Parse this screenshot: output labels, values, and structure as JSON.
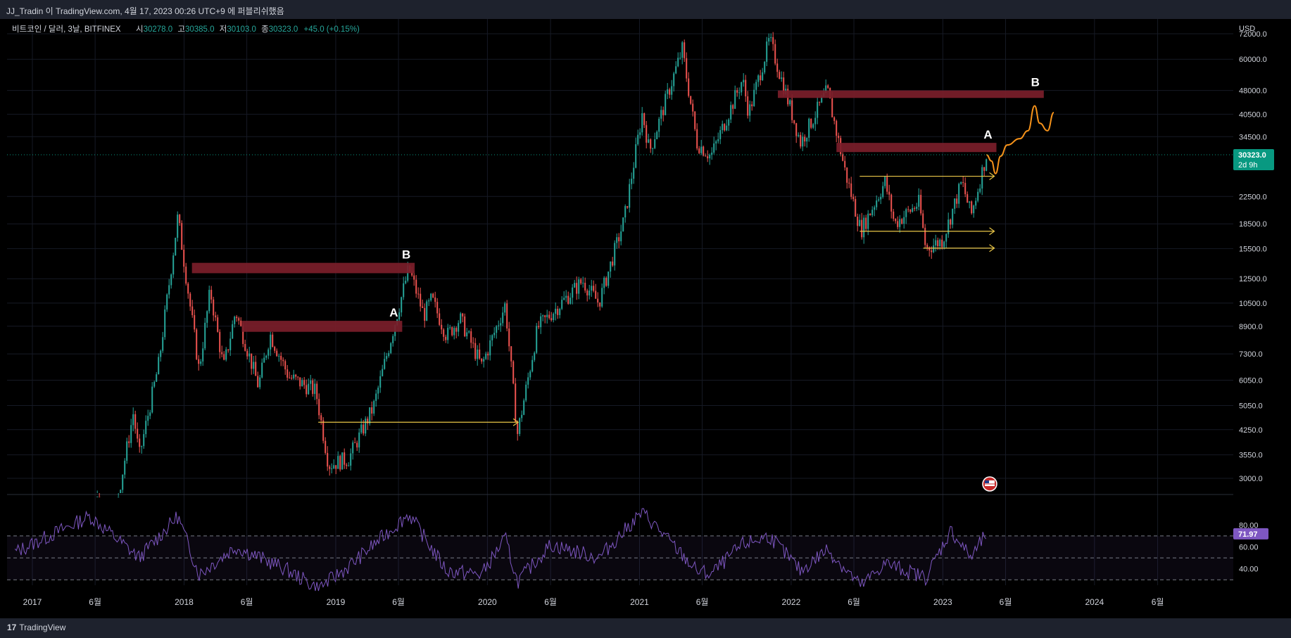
{
  "header": {
    "title": "JJ_Tradin 이 TradingView.com, 4월 17, 2023 00:26 UTC+9 에 퍼블리쉬했음"
  },
  "footer": {
    "brand_mark": "17",
    "brand_name": "TradingView"
  },
  "legend": {
    "symbol": "비트코인 / 달러, 3날, BITFINEX",
    "open_label": "시",
    "open": "30278.0",
    "high_label": "고",
    "high": "30385.0",
    "low_label": "저",
    "low": "30103.0",
    "close_label": "종",
    "close": "30323.0",
    "change": "+45.0 (+0.15%)"
  },
  "price_axis": {
    "currency": "USD",
    "ticks": [
      "72000.0",
      "60000.0",
      "48000.0",
      "40500.0",
      "34500.0",
      "22500.0",
      "18500.0",
      "15500.0",
      "12500.0",
      "10500.0",
      "8900.0",
      "7300.0",
      "6050.0",
      "5050.0",
      "4250.0",
      "3550.0",
      "3000.0"
    ],
    "last_price": "30323.0",
    "countdown": "2d 9h"
  },
  "rsi_axis": {
    "ticks": [
      "80.00",
      "60.00",
      "40.00"
    ],
    "value": "71.97"
  },
  "time_axis": [
    "2017",
    "6월",
    "2018",
    "6월",
    "2019",
    "6월",
    "2020",
    "6월",
    "2021",
    "6월",
    "2022",
    "6월",
    "2023",
    "6월",
    "2024",
    "6월"
  ],
  "annotations": {
    "labels": [
      "B",
      "A",
      "B",
      "A"
    ]
  },
  "colors": {
    "background": "#000000",
    "up": "#26a69a",
    "down": "#ef5350",
    "zone": "#7b1e2a",
    "arrow": "#e8c547",
    "projection": "#f7931a",
    "rsi": "#7e57c2",
    "last_price_badge": "#089981"
  },
  "chart_data": {
    "type": "candlestick",
    "title": "비트코인 / 달러, 3날, BITFINEX",
    "ylabel": "USD",
    "yscale": "log",
    "ylim": [
      2700,
      80000
    ],
    "xlim": [
      "2016-11-01",
      "2024-11-30"
    ],
    "path_points": [
      [
        "2016-11-20",
        700
      ],
      [
        "2017-02-20",
        1100
      ],
      [
        "2017-04-20",
        1400
      ],
      [
        "2017-05-30",
        2600
      ],
      [
        "2017-07-15",
        2200
      ],
      [
        "2017-09-01",
        4800
      ],
      [
        "2017-09-15",
        3500
      ],
      [
        "2017-11-01",
        6800
      ],
      [
        "2017-12-17",
        19500
      ],
      [
        "2018-02-06",
        6500
      ],
      [
        "2018-03-05",
        11500
      ],
      [
        "2018-04-06",
        6600
      ],
      [
        "2018-05-05",
        9900
      ],
      [
        "2018-06-29",
        5800
      ],
      [
        "2018-07-27",
        8400
      ],
      [
        "2018-09-10",
        6200
      ],
      [
        "2018-11-14",
        5600
      ],
      [
        "2018-12-15",
        3300
      ],
      [
        "2019-02-01",
        3450
      ],
      [
        "2019-04-02",
        5000
      ],
      [
        "2019-06-26",
        13500
      ],
      [
        "2019-08-01",
        9600
      ],
      [
        "2019-08-20",
        10800
      ],
      [
        "2019-09-25",
        8300
      ],
      [
        "2019-10-27",
        9400
      ],
      [
        "2019-12-18",
        6700
      ],
      [
        "2020-02-13",
        10400
      ],
      [
        "2020-03-13",
        4100
      ],
      [
        "2020-05-01",
        8800
      ],
      [
        "2020-06-01",
        9700
      ],
      [
        "2020-08-17",
        12300
      ],
      [
        "2020-09-25",
        10500
      ],
      [
        "2020-11-25",
        19000
      ],
      [
        "2021-01-08",
        41000
      ],
      [
        "2021-01-25",
        31000
      ],
      [
        "2021-04-14",
        64500
      ],
      [
        "2021-05-19",
        33000
      ],
      [
        "2021-06-22",
        30000
      ],
      [
        "2021-09-06",
        52000
      ],
      [
        "2021-09-21",
        40800
      ],
      [
        "2021-11-10",
        69000
      ],
      [
        "2022-01-24",
        33000
      ],
      [
        "2022-03-29",
        48000
      ],
      [
        "2022-05-12",
        26500
      ],
      [
        "2022-06-18",
        17600
      ],
      [
        "2022-08-15",
        25000
      ],
      [
        "2022-09-07",
        18500
      ],
      [
        "2022-11-05",
        21500
      ],
      [
        "2022-11-21",
        15500
      ],
      [
        "2023-01-01",
        16500
      ],
      [
        "2023-02-16",
        25000
      ],
      [
        "2023-03-10",
        19600
      ],
      [
        "2023-04-16",
        30323
      ]
    ],
    "resistance_zones": [
      {
        "label": "B",
        "x_start": "2018-01-20",
        "x_end": "2019-07-10",
        "y_low": 13000,
        "y_high": 14000
      },
      {
        "label": "A",
        "x_start": "2018-05-20",
        "x_end": "2019-06-10",
        "y_low": 8550,
        "y_high": 9250
      },
      {
        "label": "B",
        "x_start": "2021-11-30",
        "x_end": "2023-09-01",
        "y_low": 45500,
        "y_high": 48000
      },
      {
        "label": "A",
        "x_start": "2022-04-20",
        "x_end": "2023-05-10",
        "y_low": 30900,
        "y_high": 33000
      }
    ],
    "arrows": [
      {
        "x_start": "2018-11-20",
        "x_end": "2020-03-15",
        "y": 4480
      },
      {
        "x_start": "2022-06-15",
        "x_end": "2023-05-05",
        "y": 26000
      },
      {
        "x_start": "2022-06-15",
        "x_end": "2023-05-05",
        "y": 17550
      },
      {
        "x_start": "2022-11-15",
        "x_end": "2023-05-05",
        "y": 15550
      }
    ],
    "projection": [
      [
        "2023-04-16",
        30323
      ],
      [
        "2023-04-28",
        29000
      ],
      [
        "2023-05-08",
        26500
      ],
      [
        "2023-05-20",
        30000
      ],
      [
        "2023-06-05",
        32500
      ],
      [
        "2023-07-05",
        34000
      ],
      [
        "2023-07-25",
        36000
      ],
      [
        "2023-08-10",
        43000
      ],
      [
        "2023-08-22",
        38000
      ],
      [
        "2023-09-10",
        36000
      ],
      [
        "2023-09-25",
        41000
      ]
    ],
    "rsi": {
      "label": "RSI",
      "value": 71.97,
      "levels": [
        70,
        50,
        30
      ],
      "ylim": [
        25,
        95
      ],
      "path_points": [
        [
          "2016-11-20",
          55
        ],
        [
          "2017-05-20",
          88
        ],
        [
          "2017-09-15",
          50
        ],
        [
          "2017-12-17",
          88
        ],
        [
          "2018-02-06",
          35
        ],
        [
          "2018-05-05",
          60
        ],
        [
          "2018-09-01",
          40
        ],
        [
          "2018-11-20",
          22
        ],
        [
          "2019-02-01",
          42
        ],
        [
          "2019-06-26",
          90
        ],
        [
          "2019-09-25",
          38
        ],
        [
          "2019-12-18",
          35
        ],
        [
          "2020-02-13",
          68
        ],
        [
          "2020-03-13",
          28
        ],
        [
          "2020-06-01",
          62
        ],
        [
          "2020-09-25",
          50
        ],
        [
          "2021-01-08",
          92
        ],
        [
          "2021-05-19",
          38
        ],
        [
          "2021-06-22",
          35
        ],
        [
          "2021-09-06",
          62
        ],
        [
          "2021-11-10",
          70
        ],
        [
          "2022-01-24",
          38
        ],
        [
          "2022-03-29",
          58
        ],
        [
          "2022-06-18",
          24
        ],
        [
          "2022-08-15",
          45
        ],
        [
          "2022-11-21",
          32
        ],
        [
          "2023-01-20",
          75
        ],
        [
          "2023-03-10",
          50
        ],
        [
          "2023-04-16",
          71.97
        ]
      ]
    }
  }
}
